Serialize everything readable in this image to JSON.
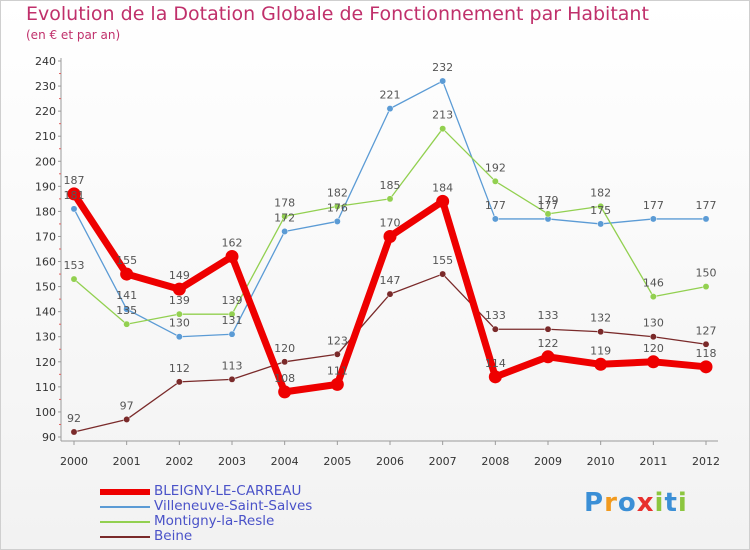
{
  "title": "Evolution de la Dotation Globale de Fonctionnement par Habitant",
  "subtitle": "(en € et par an)",
  "chart_data": {
    "type": "line",
    "title": "Evolution de la Dotation Globale de Fonctionnement par Habitant",
    "subtitle": "(en € et par an)",
    "xlabel": "",
    "ylabel": "",
    "x": [
      "2000",
      "2001",
      "2002",
      "2003",
      "2004",
      "2005",
      "2006",
      "2007",
      "2008",
      "2009",
      "2010",
      "2011",
      "2012"
    ],
    "ylim": [
      90,
      240
    ],
    "yticks": [
      90,
      100,
      110,
      120,
      130,
      140,
      150,
      160,
      170,
      180,
      190,
      200,
      210,
      220,
      230,
      240
    ],
    "grid": false,
    "legend_position": "bottom-left",
    "series": [
      {
        "name": "BLEIGNY-LE-CARREAU",
        "color": "#ee0000",
        "values": [
          187,
          155,
          149,
          162,
          108,
          111,
          170,
          184,
          114,
          122,
          119,
          120,
          118
        ]
      },
      {
        "name": "Villeneuve-Saint-Salves",
        "color": "#5b9bd5",
        "values": [
          181,
          141,
          130,
          131,
          172,
          176,
          221,
          232,
          177,
          177,
          175,
          177,
          177
        ]
      },
      {
        "name": "Montigny-la-Resle",
        "color": "#92d050",
        "values": [
          153,
          135,
          139,
          139,
          178,
          182,
          185,
          213,
          192,
          179,
          182,
          146,
          150
        ]
      },
      {
        "name": "Beine",
        "color": "#7a2a2a",
        "values": [
          92,
          97,
          112,
          113,
          120,
          123,
          147,
          155,
          133,
          133,
          132,
          130,
          127
        ]
      }
    ]
  },
  "logo": {
    "text": "Proxiti",
    "letters": [
      "P",
      "r",
      "o",
      "x",
      "i",
      "t",
      "i"
    ],
    "colors": [
      "#3b8fd6",
      "#f29a1e",
      "#3b8fd6",
      "#e8302e",
      "#8cc63f",
      "#3b8fd6",
      "#8cc63f"
    ]
  }
}
